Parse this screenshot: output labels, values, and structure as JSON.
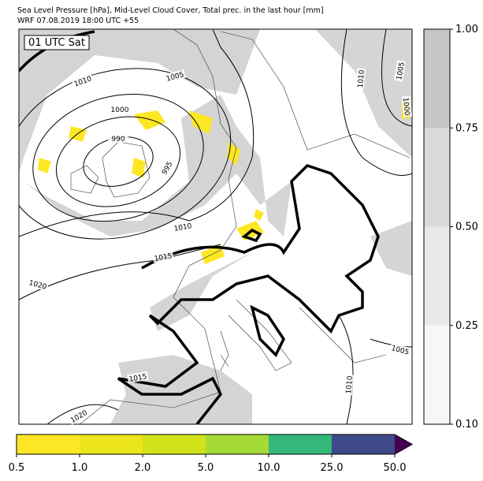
{
  "header": {
    "title": "Sea Level Pressure [hPa], Mid-Level Cloud Cover, Total prec. in the last hour [mm]",
    "subtitle": "WRF 07.08.2019 18:00 UTC +55"
  },
  "map": {
    "time_label": "01 UTC Sat",
    "contour_labels": [
      "1010",
      "1005",
      "1000",
      "990",
      "995",
      "1010",
      "1015",
      "1020",
      "1015",
      "1020",
      "1010",
      "1005",
      "1000",
      "1005",
      "1010"
    ]
  },
  "colorbars": {
    "cloud": {
      "ticks": [
        {
          "value": 0.1,
          "label": "0.10"
        },
        {
          "value": 0.25,
          "label": "0.25"
        },
        {
          "value": 0.5,
          "label": "0.50"
        },
        {
          "value": 0.75,
          "label": "0.75"
        },
        {
          "value": 1,
          "label": "1.00"
        }
      ],
      "colors": [
        "#f7f7f7",
        "#e9e9e9",
        "#d9d9d9",
        "#c6c6c6"
      ]
    },
    "precip": {
      "ticks": [
        0.5,
        {
          "value": 1,
          "label": "1.0"
        },
        {
          "value": 2,
          "label": "2.0"
        },
        {
          "value": 5,
          "label": "5.0"
        },
        {
          "value": 10,
          "label": "10.0"
        },
        {
          "value": 25,
          "label": "25.0"
        },
        {
          "value": 50,
          "label": "50.0"
        }
      ],
      "colors": [
        "#fde725",
        "#ece51b",
        "#d2e21b",
        "#a5db36",
        "#35b779",
        "#3e4989"
      ],
      "extend_color": "#440154"
    }
  }
}
